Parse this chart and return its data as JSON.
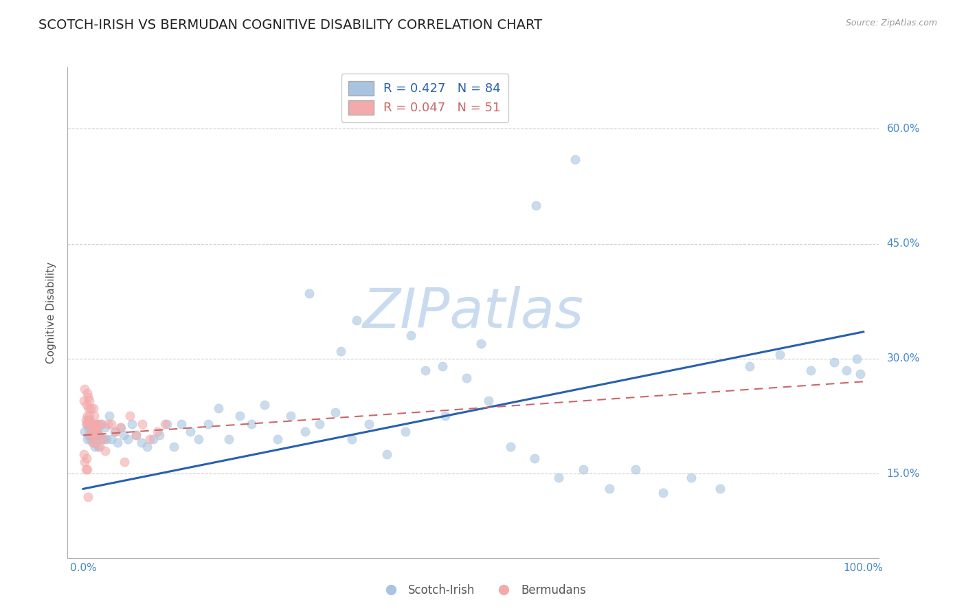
{
  "title": "SCOTCH-IRISH VS BERMUDAN COGNITIVE DISABILITY CORRELATION CHART",
  "source": "Source: ZipAtlas.com",
  "ylabel": "Cognitive Disability",
  "xlim": [
    -0.02,
    1.02
  ],
  "ylim": [
    0.04,
    0.68
  ],
  "yticks": [
    0.15,
    0.3,
    0.45,
    0.6
  ],
  "ytick_labels": [
    "15.0%",
    "30.0%",
    "45.0%",
    "60.0%"
  ],
  "xticks": [
    0.0,
    1.0
  ],
  "xtick_labels": [
    "0.0%",
    "100.0%"
  ],
  "blue_color": "#A8C4E0",
  "pink_color": "#F4AAAA",
  "trend_blue": "#2860AE",
  "trend_pink": "#CC6666",
  "legend_r_blue": "R = 0.427",
  "legend_n_blue": "N = 84",
  "legend_r_pink": "R = 0.047",
  "legend_n_pink": "N = 51",
  "watermark": "ZIPatlas",
  "watermark_color": "#C5D8EE",
  "background_color": "#FFFFFF",
  "grid_color": "#CCCCCC",
  "title_fontsize": 14,
  "axis_label_fontsize": 11,
  "tick_fontsize": 11,
  "blue_x": [
    0.002,
    0.004,
    0.005,
    0.006,
    0.007,
    0.008,
    0.009,
    0.01,
    0.011,
    0.012,
    0.013,
    0.014,
    0.015,
    0.016,
    0.017,
    0.018,
    0.019,
    0.02,
    0.022,
    0.024,
    0.026,
    0.028,
    0.03,
    0.033,
    0.036,
    0.04,
    0.044,
    0.048,
    0.052,
    0.057,
    0.062,
    0.068,
    0.075,
    0.082,
    0.09,
    0.098,
    0.107,
    0.116,
    0.126,
    0.137,
    0.148,
    0.16,
    0.173,
    0.187,
    0.201,
    0.216,
    0.232,
    0.249,
    0.266,
    0.284,
    0.303,
    0.323,
    0.344,
    0.366,
    0.389,
    0.413,
    0.438,
    0.464,
    0.491,
    0.519,
    0.548,
    0.578,
    0.609,
    0.641,
    0.674,
    0.708,
    0.743,
    0.779,
    0.816,
    0.854,
    0.893,
    0.932,
    0.962,
    0.978,
    0.991,
    0.996,
    0.35,
    0.42,
    0.46,
    0.51,
    0.58,
    0.63,
    0.29,
    0.33
  ],
  "blue_y": [
    0.205,
    0.215,
    0.195,
    0.21,
    0.2,
    0.22,
    0.195,
    0.205,
    0.215,
    0.19,
    0.2,
    0.215,
    0.185,
    0.195,
    0.205,
    0.21,
    0.185,
    0.2,
    0.195,
    0.215,
    0.195,
    0.21,
    0.195,
    0.225,
    0.195,
    0.205,
    0.19,
    0.21,
    0.2,
    0.195,
    0.215,
    0.2,
    0.19,
    0.185,
    0.195,
    0.2,
    0.215,
    0.185,
    0.215,
    0.205,
    0.195,
    0.215,
    0.235,
    0.195,
    0.225,
    0.215,
    0.24,
    0.195,
    0.225,
    0.205,
    0.215,
    0.23,
    0.195,
    0.215,
    0.175,
    0.205,
    0.285,
    0.225,
    0.275,
    0.245,
    0.185,
    0.17,
    0.145,
    0.155,
    0.13,
    0.155,
    0.125,
    0.145,
    0.13,
    0.29,
    0.305,
    0.285,
    0.295,
    0.285,
    0.3,
    0.28,
    0.35,
    0.33,
    0.29,
    0.32,
    0.5,
    0.56,
    0.385,
    0.31
  ],
  "pink_x": [
    0.001,
    0.002,
    0.003,
    0.004,
    0.004,
    0.005,
    0.005,
    0.006,
    0.006,
    0.007,
    0.007,
    0.008,
    0.008,
    0.009,
    0.009,
    0.01,
    0.01,
    0.011,
    0.011,
    0.012,
    0.012,
    0.013,
    0.013,
    0.014,
    0.015,
    0.016,
    0.017,
    0.018,
    0.019,
    0.02,
    0.021,
    0.022,
    0.025,
    0.028,
    0.032,
    0.036,
    0.041,
    0.047,
    0.053,
    0.06,
    0.068,
    0.076,
    0.085,
    0.095,
    0.105,
    0.001,
    0.002,
    0.003,
    0.004,
    0.005,
    0.006
  ],
  "pink_y": [
    0.245,
    0.26,
    0.22,
    0.24,
    0.215,
    0.255,
    0.225,
    0.25,
    0.22,
    0.235,
    0.215,
    0.245,
    0.225,
    0.215,
    0.2,
    0.235,
    0.21,
    0.2,
    0.215,
    0.19,
    0.215,
    0.205,
    0.235,
    0.225,
    0.205,
    0.19,
    0.215,
    0.205,
    0.215,
    0.2,
    0.185,
    0.215,
    0.195,
    0.18,
    0.215,
    0.215,
    0.205,
    0.21,
    0.165,
    0.225,
    0.2,
    0.215,
    0.195,
    0.205,
    0.215,
    0.175,
    0.165,
    0.155,
    0.17,
    0.155,
    0.12
  ],
  "blue_trend_x": [
    0.0,
    1.0
  ],
  "blue_trend_y": [
    0.13,
    0.335
  ],
  "pink_trend_x": [
    0.0,
    1.0
  ],
  "pink_trend_y": [
    0.2,
    0.27
  ]
}
